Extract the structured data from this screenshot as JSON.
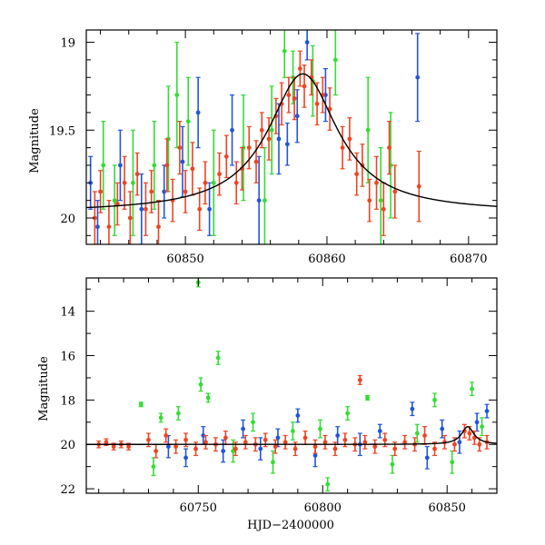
{
  "chart_data": [
    {
      "type": "scatter",
      "title": "",
      "xlabel": "",
      "ylabel": "Magnitude",
      "xlim": [
        60843,
        60872
      ],
      "ylim": [
        20.15,
        18.93
      ],
      "y_inverted": true,
      "x_ticks": [
        60850,
        60860,
        60870
      ],
      "x_tick_labels": [
        "60850",
        "60860",
        "60870"
      ],
      "y_ticks": [
        19,
        19.5,
        20
      ],
      "y_tick_labels": [
        "19",
        "19.5",
        "20"
      ],
      "model_curve": {
        "type": "lorentzian",
        "baseline": 19.97,
        "peak": 19.18,
        "t0": 60858.3,
        "width": 3.0
      },
      "series": [
        {
          "color": "#2255dd",
          "points": [
            {
              "x": 60843.3,
              "y": 19.8,
              "err": 0.15
            },
            {
              "x": 60843.8,
              "y": 20.05,
              "err": 0.15
            },
            {
              "x": 60845.4,
              "y": 19.7,
              "err": 0.2
            },
            {
              "x": 60846.9,
              "y": 19.95,
              "err": 0.2
            },
            {
              "x": 60848.5,
              "y": 19.85,
              "err": 0.15
            },
            {
              "x": 60849.8,
              "y": 19.68,
              "err": 0.2
            },
            {
              "x": 60850.9,
              "y": 19.4,
              "err": 0.2
            },
            {
              "x": 60851.7,
              "y": 19.95,
              "err": 0.15
            },
            {
              "x": 60853.3,
              "y": 19.5,
              "err": 0.2
            },
            {
              "x": 60855.2,
              "y": 19.9,
              "err": 0.25
            },
            {
              "x": 60856.6,
              "y": 19.55,
              "err": 0.2
            },
            {
              "x": 60857.2,
              "y": 19.58,
              "err": 0.12
            },
            {
              "x": 60857.9,
              "y": 19.42,
              "err": 0.15
            },
            {
              "x": 60858.6,
              "y": 19.0,
              "err": 0.1
            },
            {
              "x": 60859.9,
              "y": 19.3,
              "err": 0.15
            },
            {
              "x": 60866.4,
              "y": 19.2,
              "err": 0.25
            }
          ]
        },
        {
          "color": "#33dd33",
          "points": [
            {
              "x": 60844.2,
              "y": 19.7,
              "err": 0.25
            },
            {
              "x": 60845.0,
              "y": 19.9,
              "err": 0.2
            },
            {
              "x": 60846.3,
              "y": 19.8,
              "err": 0.3
            },
            {
              "x": 60847.8,
              "y": 19.7,
              "err": 0.25
            },
            {
              "x": 60848.8,
              "y": 19.55,
              "err": 0.3
            },
            {
              "x": 60849.4,
              "y": 19.3,
              "err": 0.3
            },
            {
              "x": 60850.2,
              "y": 19.45,
              "err": 0.25
            },
            {
              "x": 60852.0,
              "y": 19.8,
              "err": 0.3
            },
            {
              "x": 60854.1,
              "y": 19.6,
              "err": 0.3
            },
            {
              "x": 60855.6,
              "y": 19.9,
              "err": 0.3
            },
            {
              "x": 60856.1,
              "y": 19.5,
              "err": 0.25
            },
            {
              "x": 60857.0,
              "y": 19.05,
              "err": 0.15
            },
            {
              "x": 60857.6,
              "y": 19.2,
              "err": 0.15
            },
            {
              "x": 60859.0,
              "y": 19.22,
              "err": 0.2
            },
            {
              "x": 60860.6,
              "y": 19.1,
              "err": 0.2
            },
            {
              "x": 60862.9,
              "y": 19.5,
              "err": 0.3
            },
            {
              "x": 60863.8,
              "y": 19.9,
              "err": 0.3
            },
            {
              "x": 60864.5,
              "y": 19.7,
              "err": 0.3
            }
          ]
        },
        {
          "color": "#ee4422",
          "points": [
            {
              "x": 60843.6,
              "y": 20.0,
              "err": 0.15
            },
            {
              "x": 60844.0,
              "y": 19.85,
              "err": 0.12
            },
            {
              "x": 60844.6,
              "y": 20.05,
              "err": 0.15
            },
            {
              "x": 60845.2,
              "y": 19.92,
              "err": 0.12
            },
            {
              "x": 60845.7,
              "y": 19.8,
              "err": 0.15
            },
            {
              "x": 60846.1,
              "y": 20.0,
              "err": 0.15
            },
            {
              "x": 60846.6,
              "y": 19.75,
              "err": 0.12
            },
            {
              "x": 60847.2,
              "y": 19.95,
              "err": 0.15
            },
            {
              "x": 60847.6,
              "y": 19.85,
              "err": 0.12
            },
            {
              "x": 60848.1,
              "y": 20.05,
              "err": 0.15
            },
            {
              "x": 60848.7,
              "y": 19.7,
              "err": 0.15
            },
            {
              "x": 60849.1,
              "y": 19.9,
              "err": 0.12
            },
            {
              "x": 60849.6,
              "y": 19.6,
              "err": 0.15
            },
            {
              "x": 60850.0,
              "y": 19.85,
              "err": 0.12
            },
            {
              "x": 60850.5,
              "y": 19.72,
              "err": 0.15
            },
            {
              "x": 60851.0,
              "y": 19.95,
              "err": 0.12
            },
            {
              "x": 60851.4,
              "y": 19.8,
              "err": 0.12
            },
            {
              "x": 60852.4,
              "y": 19.75,
              "err": 0.12
            },
            {
              "x": 60852.9,
              "y": 19.65,
              "err": 0.12
            },
            {
              "x": 60853.6,
              "y": 19.8,
              "err": 0.12
            },
            {
              "x": 60854.0,
              "y": 19.72,
              "err": 0.12
            },
            {
              "x": 60854.5,
              "y": 19.6,
              "err": 0.12
            },
            {
              "x": 60855.0,
              "y": 19.68,
              "err": 0.12
            },
            {
              "x": 60855.4,
              "y": 19.5,
              "err": 0.1
            },
            {
              "x": 60855.9,
              "y": 19.55,
              "err": 0.12
            },
            {
              "x": 60856.4,
              "y": 19.42,
              "err": 0.1
            },
            {
              "x": 60856.8,
              "y": 19.35,
              "err": 0.12
            },
            {
              "x": 60857.3,
              "y": 19.3,
              "err": 0.1
            },
            {
              "x": 60857.7,
              "y": 19.32,
              "err": 0.12
            },
            {
              "x": 60858.1,
              "y": 19.15,
              "err": 0.1
            },
            {
              "x": 60858.4,
              "y": 19.25,
              "err": 0.12
            },
            {
              "x": 60858.9,
              "y": 19.2,
              "err": 0.1
            },
            {
              "x": 60859.3,
              "y": 19.35,
              "err": 0.12
            },
            {
              "x": 60859.7,
              "y": 19.3,
              "err": 0.1
            },
            {
              "x": 60860.2,
              "y": 19.38,
              "err": 0.12
            },
            {
              "x": 60861.1,
              "y": 19.6,
              "err": 0.12
            },
            {
              "x": 60861.6,
              "y": 19.55,
              "err": 0.12
            },
            {
              "x": 60862.1,
              "y": 19.75,
              "err": 0.12
            },
            {
              "x": 60862.5,
              "y": 19.7,
              "err": 0.12
            },
            {
              "x": 60863.0,
              "y": 19.9,
              "err": 0.12
            },
            {
              "x": 60863.5,
              "y": 19.8,
              "err": 0.15
            },
            {
              "x": 60864.0,
              "y": 19.95,
              "err": 0.15
            },
            {
              "x": 60864.4,
              "y": 19.6,
              "err": 0.15
            },
            {
              "x": 60864.8,
              "y": 19.85,
              "err": 0.15
            },
            {
              "x": 60866.5,
              "y": 19.82,
              "err": 0.2
            }
          ]
        }
      ]
    },
    {
      "type": "scatter",
      "title": "",
      "xlabel": "HJD−2400000",
      "ylabel": "Magnitude",
      "xlim": [
        60705,
        60870
      ],
      "ylim": [
        22.2,
        12.5
      ],
      "y_inverted": true,
      "x_ticks": [
        60750,
        60800,
        60850
      ],
      "x_tick_labels": [
        "60750",
        "60800",
        "60850"
      ],
      "y_ticks": [
        14,
        16,
        18,
        20,
        22
      ],
      "y_tick_labels": [
        "14",
        "16",
        "18",
        "20",
        "22"
      ],
      "model_curve": {
        "type": "lorentzian",
        "baseline": 20.0,
        "peak": 19.2,
        "t0": 60858.3,
        "width": 3.0
      },
      "series": [
        {
          "color": "#2255dd",
          "points": [
            {
              "x": 60738,
              "y": 20.1,
              "err": 0.5
            },
            {
              "x": 60745,
              "y": 20.6,
              "err": 0.4
            },
            {
              "x": 60752,
              "y": 19.6,
              "err": 0.4
            },
            {
              "x": 60760,
              "y": 20.3,
              "err": 0.5
            },
            {
              "x": 60768,
              "y": 19.3,
              "err": 0.4
            },
            {
              "x": 60775,
              "y": 20.2,
              "err": 0.5
            },
            {
              "x": 60782,
              "y": 19.7,
              "err": 0.4
            },
            {
              "x": 60790,
              "y": 18.7,
              "err": 0.3
            },
            {
              "x": 60797,
              "y": 20.5,
              "err": 0.5
            },
            {
              "x": 60806,
              "y": 19.6,
              "err": 0.4
            },
            {
              "x": 60815,
              "y": 20.0,
              "err": 0.5
            },
            {
              "x": 60823,
              "y": 19.4,
              "err": 0.3
            },
            {
              "x": 60836,
              "y": 18.4,
              "err": 0.3
            },
            {
              "x": 60842,
              "y": 20.6,
              "err": 0.5
            },
            {
              "x": 60848,
              "y": 19.3,
              "err": 0.4
            },
            {
              "x": 60855,
              "y": 19.9,
              "err": 0.5
            },
            {
              "x": 60862,
              "y": 19.0,
              "err": 0.4
            },
            {
              "x": 60866,
              "y": 18.5,
              "err": 0.3
            }
          ]
        },
        {
          "color": "#33dd33",
          "points": [
            {
              "x": 60727,
              "y": 18.2,
              "err": 0.1
            },
            {
              "x": 60732,
              "y": 21.0,
              "err": 0.4
            },
            {
              "x": 60735,
              "y": 18.8,
              "err": 0.2
            },
            {
              "x": 60742,
              "y": 18.6,
              "err": 0.3
            },
            {
              "x": 60750,
              "y": 12.7,
              "err": 0.2
            },
            {
              "x": 60751,
              "y": 17.3,
              "err": 0.3
            },
            {
              "x": 60754,
              "y": 17.9,
              "err": 0.2
            },
            {
              "x": 60758,
              "y": 16.1,
              "err": 0.3
            },
            {
              "x": 60764,
              "y": 20.3,
              "err": 0.5
            },
            {
              "x": 60772,
              "y": 19.0,
              "err": 0.4
            },
            {
              "x": 60780,
              "y": 20.8,
              "err": 0.5
            },
            {
              "x": 60788,
              "y": 19.4,
              "err": 0.4
            },
            {
              "x": 60799,
              "y": 19.3,
              "err": 0.4
            },
            {
              "x": 60802,
              "y": 21.8,
              "err": 0.3
            },
            {
              "x": 60810,
              "y": 18.6,
              "err": 0.3
            },
            {
              "x": 60818,
              "y": 17.9,
              "err": 0.1
            },
            {
              "x": 60828,
              "y": 20.9,
              "err": 0.4
            },
            {
              "x": 60838,
              "y": 19.5,
              "err": 0.4
            },
            {
              "x": 60845,
              "y": 18.0,
              "err": 0.3
            },
            {
              "x": 60852,
              "y": 20.8,
              "err": 0.5
            },
            {
              "x": 60860,
              "y": 17.5,
              "err": 0.3
            },
            {
              "x": 60864,
              "y": 19.2,
              "err": 0.4
            }
          ]
        },
        {
          "color": "#ee4422",
          "points": [
            {
              "x": 60710,
              "y": 20.0,
              "err": 0.15
            },
            {
              "x": 60713,
              "y": 19.9,
              "err": 0.15
            },
            {
              "x": 60716,
              "y": 20.1,
              "err": 0.15
            },
            {
              "x": 60719,
              "y": 20.0,
              "err": 0.15
            },
            {
              "x": 60722,
              "y": 20.1,
              "err": 0.15
            },
            {
              "x": 60730,
              "y": 19.8,
              "err": 0.3
            },
            {
              "x": 60733,
              "y": 20.3,
              "err": 0.3
            },
            {
              "x": 60737,
              "y": 19.6,
              "err": 0.3
            },
            {
              "x": 60741,
              "y": 20.1,
              "err": 0.3
            },
            {
              "x": 60745,
              "y": 19.8,
              "err": 0.3
            },
            {
              "x": 60749,
              "y": 20.2,
              "err": 0.3
            },
            {
              "x": 60753,
              "y": 19.9,
              "err": 0.3
            },
            {
              "x": 60757,
              "y": 20.0,
              "err": 0.3
            },
            {
              "x": 60761,
              "y": 19.7,
              "err": 0.3
            },
            {
              "x": 60765,
              "y": 20.2,
              "err": 0.3
            },
            {
              "x": 60769,
              "y": 19.9,
              "err": 0.3
            },
            {
              "x": 60773,
              "y": 20.0,
              "err": 0.3
            },
            {
              "x": 60777,
              "y": 19.8,
              "err": 0.3
            },
            {
              "x": 60781,
              "y": 20.1,
              "err": 0.3
            },
            {
              "x": 60785,
              "y": 19.9,
              "err": 0.3
            },
            {
              "x": 60789,
              "y": 20.2,
              "err": 0.3
            },
            {
              "x": 60793,
              "y": 19.7,
              "err": 0.3
            },
            {
              "x": 60797,
              "y": 20.1,
              "err": 0.3
            },
            {
              "x": 60801,
              "y": 19.9,
              "err": 0.3
            },
            {
              "x": 60805,
              "y": 20.2,
              "err": 0.3
            },
            {
              "x": 60809,
              "y": 19.8,
              "err": 0.3
            },
            {
              "x": 60813,
              "y": 20.0,
              "err": 0.3
            },
            {
              "x": 60815,
              "y": 17.1,
              "err": 0.2
            },
            {
              "x": 60817,
              "y": 19.9,
              "err": 0.3
            },
            {
              "x": 60821,
              "y": 20.1,
              "err": 0.3
            },
            {
              "x": 60825,
              "y": 19.8,
              "err": 0.3
            },
            {
              "x": 60829,
              "y": 20.2,
              "err": 0.3
            },
            {
              "x": 60833,
              "y": 19.9,
              "err": 0.3
            },
            {
              "x": 60837,
              "y": 20.0,
              "err": 0.3
            },
            {
              "x": 60841,
              "y": 19.6,
              "err": 0.4
            },
            {
              "x": 60845,
              "y": 20.2,
              "err": 0.3
            },
            {
              "x": 60849,
              "y": 19.9,
              "err": 0.3
            },
            {
              "x": 60853,
              "y": 20.0,
              "err": 0.3
            },
            {
              "x": 60857,
              "y": 19.4,
              "err": 0.3
            },
            {
              "x": 60859,
              "y": 19.5,
              "err": 0.3
            },
            {
              "x": 60861,
              "y": 19.7,
              "err": 0.3
            },
            {
              "x": 60863,
              "y": 20.0,
              "err": 0.3
            },
            {
              "x": 60866,
              "y": 19.9,
              "err": 0.3
            }
          ]
        }
      ]
    }
  ]
}
